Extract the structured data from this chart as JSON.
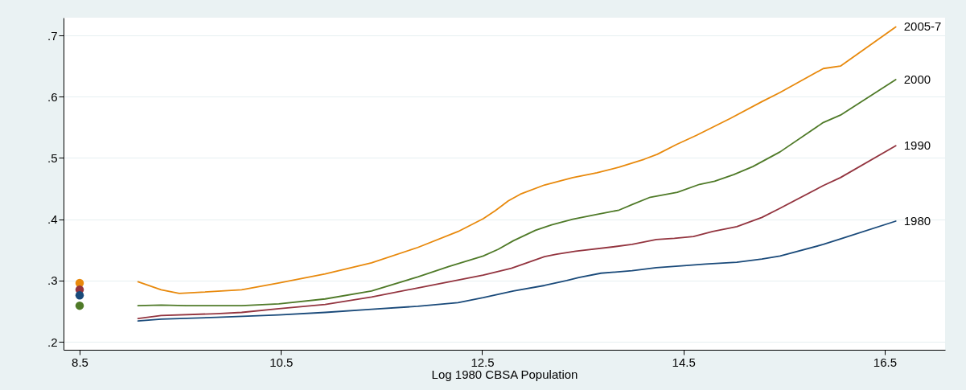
{
  "chart_data": {
    "type": "line",
    "xlabel": "Log 1980 CBSA Population",
    "xlim": [
      8.34,
      17.1
    ],
    "xticks": [
      8.5,
      10.5,
      12.5,
      14.5,
      16.5
    ],
    "ylim": [
      0.187,
      0.729
    ],
    "yticks": [
      {
        "value": 0.2,
        "label": ".2"
      },
      {
        "value": 0.3,
        "label": ".3"
      },
      {
        "value": 0.4,
        "label": ".4"
      },
      {
        "value": 0.5,
        "label": ".5"
      },
      {
        "value": 0.6,
        "label": ".6"
      },
      {
        "value": 0.7,
        "label": ".7"
      }
    ],
    "grid": "y",
    "line_style": "solid",
    "series": [
      {
        "name": "2005-7",
        "color": "#e8890c",
        "x": [
          9.08,
          9.31,
          9.49,
          9.71,
          10.11,
          10.48,
          10.94,
          11.4,
          11.86,
          12.26,
          12.51,
          12.63,
          12.76,
          12.88,
          13.12,
          13.4,
          13.64,
          13.86,
          14.11,
          14.24,
          14.43,
          14.63,
          14.97,
          15.28,
          15.46,
          15.89,
          16.06,
          16.61
        ],
        "values": [
          0.298,
          0.285,
          0.279,
          0.281,
          0.285,
          0.296,
          0.311,
          0.329,
          0.354,
          0.38,
          0.401,
          0.414,
          0.43,
          0.441,
          0.456,
          0.468,
          0.476,
          0.485,
          0.498,
          0.506,
          0.522,
          0.537,
          0.565,
          0.592,
          0.607,
          0.646,
          0.65,
          0.714
        ]
      },
      {
        "name": "2000",
        "color": "#4f7a28",
        "x": [
          9.08,
          9.31,
          9.56,
          10.11,
          10.48,
          10.94,
          11.4,
          11.86,
          12.17,
          12.51,
          12.66,
          12.81,
          13.03,
          13.19,
          13.4,
          13.64,
          13.86,
          13.99,
          14.17,
          14.44,
          14.66,
          14.81,
          15.0,
          15.19,
          15.46,
          15.89,
          16.06,
          16.61
        ],
        "values": [
          0.259,
          0.26,
          0.259,
          0.259,
          0.262,
          0.27,
          0.283,
          0.306,
          0.323,
          0.34,
          0.351,
          0.365,
          0.382,
          0.391,
          0.4,
          0.408,
          0.415,
          0.424,
          0.436,
          0.444,
          0.457,
          0.462,
          0.473,
          0.486,
          0.51,
          0.558,
          0.57,
          0.628
        ]
      },
      {
        "name": "1990",
        "color": "#93343f",
        "x": [
          9.08,
          9.31,
          9.86,
          10.11,
          10.48,
          10.94,
          11.4,
          11.86,
          12.51,
          12.79,
          12.91,
          13.12,
          13.24,
          13.43,
          13.8,
          13.99,
          14.23,
          14.41,
          14.6,
          14.79,
          15.03,
          15.28,
          15.46,
          15.89,
          16.06,
          16.61
        ],
        "values": [
          0.238,
          0.243,
          0.246,
          0.248,
          0.254,
          0.261,
          0.273,
          0.288,
          0.309,
          0.32,
          0.327,
          0.339,
          0.343,
          0.348,
          0.355,
          0.359,
          0.367,
          0.369,
          0.372,
          0.38,
          0.388,
          0.403,
          0.418,
          0.455,
          0.468,
          0.52
        ]
      },
      {
        "name": "1980",
        "color": "#1a4a7a",
        "x": [
          9.08,
          9.31,
          9.86,
          10.48,
          10.94,
          11.4,
          11.86,
          12.26,
          12.51,
          12.81,
          13.12,
          13.34,
          13.46,
          13.68,
          13.99,
          14.23,
          14.48,
          14.72,
          15.03,
          15.28,
          15.46,
          15.89,
          16.06,
          16.61
        ],
        "values": [
          0.234,
          0.237,
          0.24,
          0.244,
          0.248,
          0.253,
          0.258,
          0.264,
          0.272,
          0.283,
          0.292,
          0.3,
          0.305,
          0.312,
          0.316,
          0.321,
          0.324,
          0.327,
          0.33,
          0.335,
          0.34,
          0.359,
          0.368,
          0.397
        ]
      },
      {
        "type": "scatter",
        "marker": "circle",
        "color": "#e8890c",
        "x": [
          8.5
        ],
        "values": [
          0.296
        ]
      },
      {
        "type": "scatter",
        "marker": "circle",
        "color": "#93343f",
        "x": [
          8.5
        ],
        "values": [
          0.285
        ]
      },
      {
        "type": "scatter",
        "marker": "circle",
        "color": "#1a4a7a",
        "x": [
          8.5
        ],
        "values": [
          0.276
        ]
      },
      {
        "type": "scatter",
        "marker": "circle",
        "color": "#4f7a28",
        "x": [
          8.5
        ],
        "values": [
          0.259
        ]
      }
    ]
  }
}
